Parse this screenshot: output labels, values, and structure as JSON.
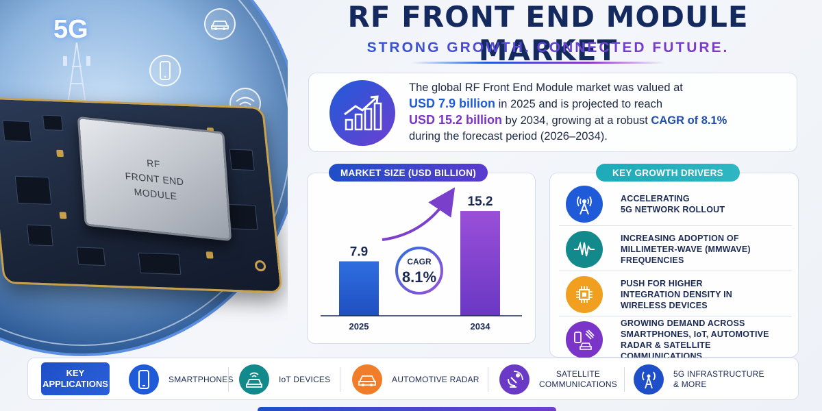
{
  "header": {
    "title": "RF FRONT END MODULE MARKET",
    "subtitle": "STRONG GROWTH. CONNECTED FUTURE."
  },
  "hero": {
    "badge_5g": "5G",
    "chip_line1": "RF",
    "chip_line2": "FRONT END",
    "chip_line3": "MODULE"
  },
  "summary": {
    "line1": "The global RF Front End Module market was valued at",
    "value_2025": "USD 7.9 billion",
    "line2_mid": " in 2025 and is projected to reach",
    "value_2034": "USD 15.2 billion",
    "line3_mid": " by 2034, growing at a robust ",
    "cagr_text": "CAGR of 8.1%",
    "line4": "during the forecast period (2026–2034)."
  },
  "market_size": {
    "label": "MARKET SIZE (USD BILLION)",
    "cagr_label": "CAGR",
    "cagr_value": "8.1%"
  },
  "chart_data": {
    "type": "bar",
    "title": "MARKET SIZE (USD BILLION)",
    "categories": [
      "2025",
      "2034"
    ],
    "values": [
      7.9,
      15.2
    ],
    "value_labels": [
      "7.9",
      "15.2"
    ],
    "ylabel": "",
    "xlabel": "",
    "ylim": [
      0,
      16
    ],
    "colors": [
      "#2a63d6",
      "#8a45cf"
    ],
    "annotation": "CAGR 8.1%"
  },
  "drivers": {
    "label": "KEY GROWTH DRIVERS",
    "items": [
      {
        "icon": "antenna-icon",
        "color": "#1f5bd8",
        "line1": "ACCELERATING",
        "line2": "5G NETWORK ROLLOUT",
        "line3": ""
      },
      {
        "icon": "waveform-icon",
        "color": "#128a8c",
        "line1": "INCREASING ADOPTION OF",
        "line2": "MILLIMETER-WAVE (MMWAVE)",
        "line3": "FREQUENCIES"
      },
      {
        "icon": "chip-icon",
        "color": "#f0a01e",
        "line1": "PUSH FOR HIGHER",
        "line2": "INTEGRATION DENSITY IN",
        "line3": "WIRELESS DEVICES"
      },
      {
        "icon": "devices-icon",
        "color": "#7a35c8",
        "line1": "GROWING DEMAND ACROSS",
        "line2": "SMARTPHONES, IoT, AUTOMOTIVE",
        "line3": "RADAR & SATELLITE COMMUNICATIONS"
      }
    ]
  },
  "applications": {
    "label_line1": "KEY",
    "label_line2": "APPLICATIONS",
    "items": [
      {
        "icon": "smartphone-icon",
        "color": "#1f5bd8",
        "line1": "SMARTPHONES",
        "line2": ""
      },
      {
        "icon": "iot-car-icon",
        "color": "#128a8c",
        "line1": "IoT DEVICES",
        "line2": ""
      },
      {
        "icon": "car-radar-icon",
        "color": "#f07d2a",
        "line1": "AUTOMOTIVE RADAR",
        "line2": ""
      },
      {
        "icon": "satellite-icon",
        "color": "#6a3ac6",
        "line1": "SATELLITE",
        "line2": "COMMUNICATIONS"
      },
      {
        "icon": "tower-icon",
        "color": "#1f4fc8",
        "line1": "5G INFRASTRUCTURE",
        "line2": "& MORE"
      }
    ]
  }
}
